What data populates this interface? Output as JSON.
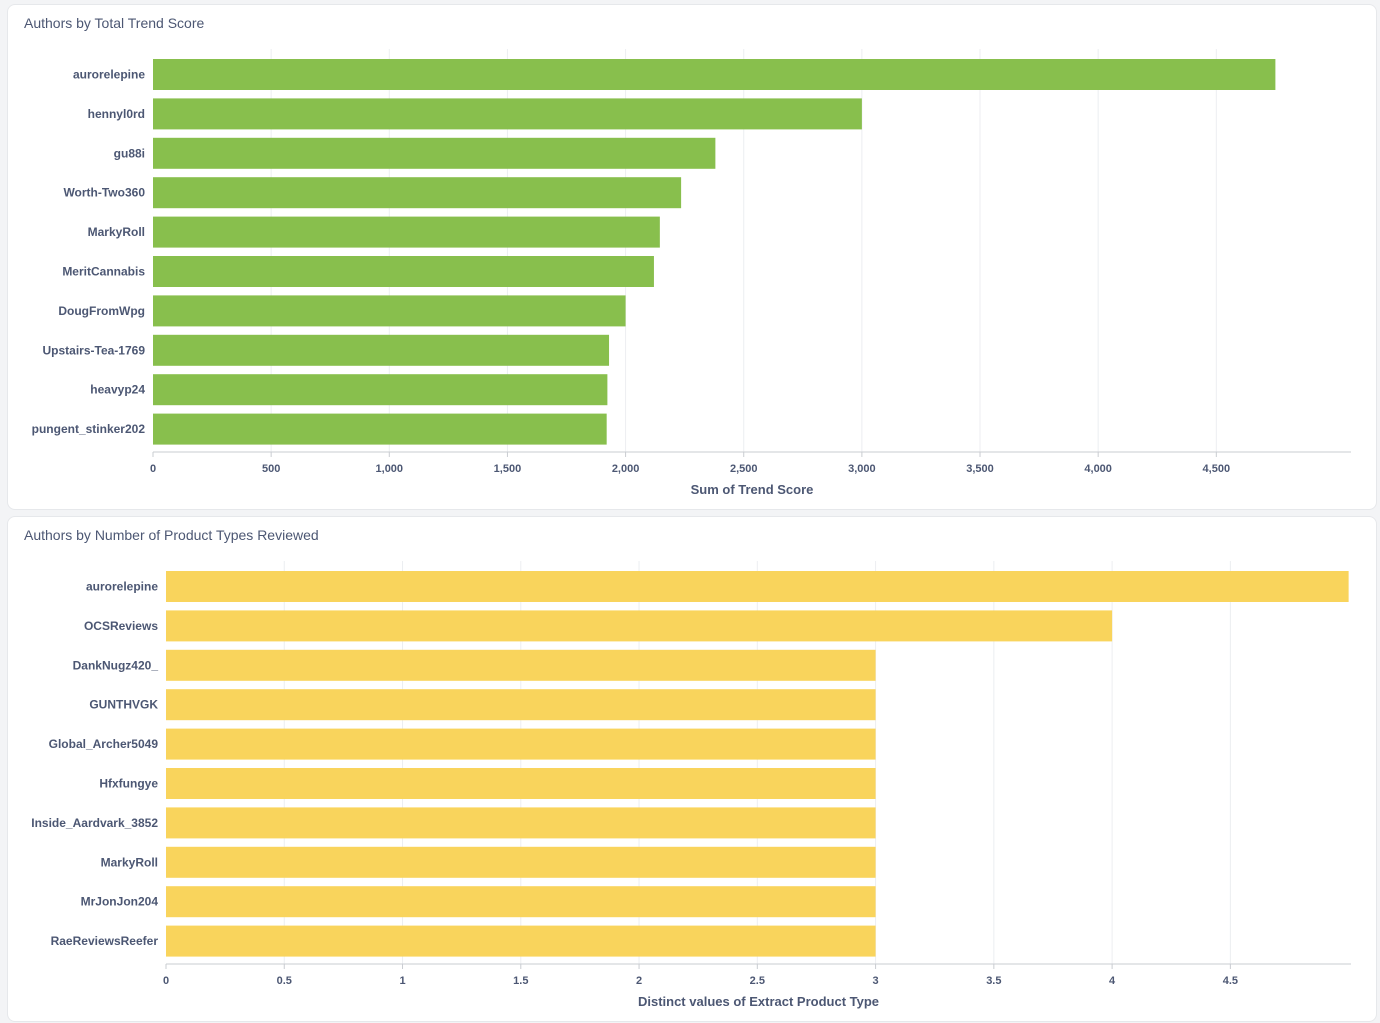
{
  "chart_data": [
    {
      "type": "bar",
      "orientation": "horizontal",
      "title": "Authors by Total Trend Score",
      "categories": [
        "aurorelepine",
        "hennyl0rd",
        "gu88i",
        "Worth-Two360",
        "MarkyRoll",
        "MeritCannabis",
        "DougFromWpg",
        "Upstairs-Tea-1769",
        "heavyp24",
        "pungent_stinker202"
      ],
      "values": [
        4750,
        3000,
        2380,
        2235,
        2145,
        2120,
        2000,
        1930,
        1923,
        1920
      ],
      "xlabel": "Sum of Trend Score",
      "xlim": [
        0,
        5070
      ],
      "xticks": [
        0,
        500,
        1000,
        1500,
        2000,
        2500,
        3000,
        3500,
        4000,
        4500
      ],
      "xtick_labels": [
        "0",
        "500",
        "1,000",
        "1,500",
        "2,000",
        "2,500",
        "3,000",
        "3,500",
        "4,000",
        "4,500"
      ],
      "grid": true,
      "color": "#88bf4d"
    },
    {
      "type": "bar",
      "orientation": "horizontal",
      "title": "Authors by Number of Product Types Reviewed",
      "categories": [
        "aurorelepine",
        "OCSReviews",
        "DankNugz420_",
        "GUNTHVGK",
        "Global_Archer5049",
        "Hfxfungye",
        "Inside_Aardvark_3852",
        "MarkyRoll",
        "MrJonJon204",
        "RaeReviewsReefer"
      ],
      "values": [
        5,
        4,
        3,
        3,
        3,
        3,
        3,
        3,
        3,
        3
      ],
      "xlabel": "Distinct values of Extract Product Type",
      "xlim": [
        0,
        5.01
      ],
      "xticks": [
        0,
        0.5,
        1,
        1.5,
        2,
        2.5,
        3,
        3.5,
        4,
        4.5
      ],
      "xtick_labels": [
        "0",
        "0.5",
        "1",
        "1.5",
        "2",
        "2.5",
        "3",
        "3.5",
        "4",
        "4.5"
      ],
      "grid": true,
      "color": "#f9d45c"
    }
  ]
}
